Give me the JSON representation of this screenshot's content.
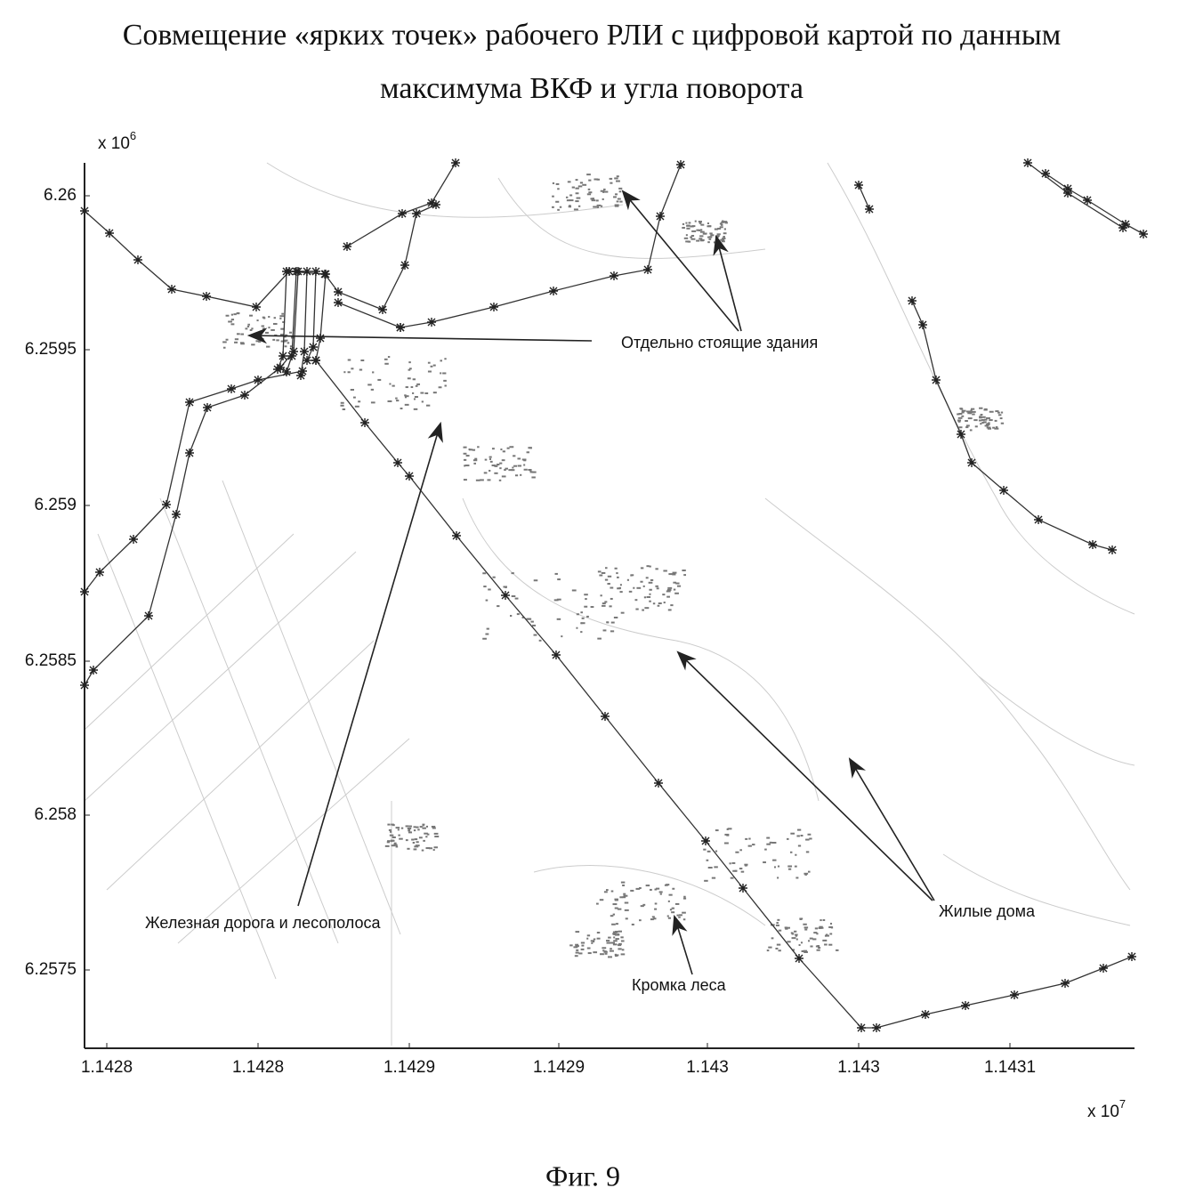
{
  "title": {
    "line1": "Совмещение «ярких точек» рабочего РЛИ с цифровой картой по данным",
    "line2": "максимума ВКФ и угла поворота"
  },
  "plot": {
    "y_multiplier": {
      "base": "x 10",
      "exponent": "6"
    },
    "x_multiplier": {
      "base": "x 10",
      "exponent": "7"
    },
    "y_tick_labels": [
      "6.26",
      "6.2595",
      "6.259",
      "6.2585",
      "6.258",
      "6.2575"
    ],
    "x_tick_labels": [
      "1.1428",
      "1.1428",
      "1.1429",
      "1.1429",
      "1.143",
      "1.143",
      "1.1431"
    ],
    "annotations": [
      "Отдельно стоящие здания",
      "Железная дорога и лесополоса",
      "Жилые дома",
      "Кромка леса"
    ]
  },
  "caption": "Фиг. 9"
}
